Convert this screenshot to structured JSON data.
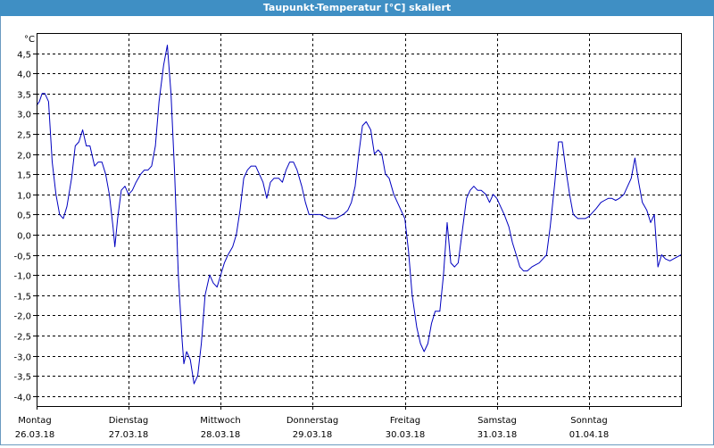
{
  "window": {
    "title": "Taupunkt-Temperatur [°C] skaliert"
  },
  "colors": {
    "title_bg": "#3f8fc4",
    "line": "#0000c0",
    "grid": "#000000",
    "background": "#ffffff"
  },
  "chart_data": {
    "type": "line",
    "title": "Taupunkt-Temperatur [°C] skaliert",
    "ylabel": "°C",
    "ylim": [
      -4.25,
      5.0
    ],
    "xlim": [
      0,
      7
    ],
    "yticks": [
      4.5,
      4.0,
      3.5,
      3.0,
      2.5,
      2.0,
      1.5,
      1.0,
      0.5,
      0.0,
      -0.5,
      -1.0,
      -1.5,
      -2.0,
      -2.5,
      -3.0,
      -3.5,
      -4.0
    ],
    "ytick_labels": [
      "4,5",
      "4,0",
      "3,5",
      "3,0",
      "2,5",
      "2,0",
      "1,5",
      "1,0",
      "0,5",
      "0,0",
      "-0,5",
      "-1,0",
      "-1,5",
      "-2,0",
      "-2,5",
      "-3,0",
      "-3,5",
      "-4,0"
    ],
    "grid": true,
    "days": [
      {
        "day": "Montag",
        "date": "26.03.18"
      },
      {
        "day": "Dienstag",
        "date": "27.03.18"
      },
      {
        "day": "Mittwoch",
        "date": "28.03.18"
      },
      {
        "day": "Donnerstag",
        "date": "29.03.18"
      },
      {
        "day": "Freitag",
        "date": "30.03.18"
      },
      {
        "day": "Samstag",
        "date": "31.03.18"
      },
      {
        "day": "Sonntag",
        "date": "01.04.18"
      }
    ],
    "series": [
      {
        "points": [
          [
            0.0,
            3.2
          ],
          [
            0.03,
            3.3
          ],
          [
            0.06,
            3.5
          ],
          [
            0.09,
            3.5
          ],
          [
            0.13,
            3.3
          ],
          [
            0.17,
            1.8
          ],
          [
            0.21,
            1.0
          ],
          [
            0.25,
            0.5
          ],
          [
            0.29,
            0.4
          ],
          [
            0.33,
            0.7
          ],
          [
            0.38,
            1.4
          ],
          [
            0.42,
            2.2
          ],
          [
            0.46,
            2.3
          ],
          [
            0.5,
            2.6
          ],
          [
            0.54,
            2.2
          ],
          [
            0.58,
            2.2
          ],
          [
            0.63,
            1.7
          ],
          [
            0.67,
            1.8
          ],
          [
            0.71,
            1.8
          ],
          [
            0.75,
            1.5
          ],
          [
            0.79,
            1.0
          ],
          [
            0.83,
            0.2
          ],
          [
            0.85,
            -0.3
          ],
          [
            0.88,
            0.4
          ],
          [
            0.92,
            1.1
          ],
          [
            0.96,
            1.2
          ],
          [
            1.0,
            1.0
          ],
          [
            1.04,
            1.1
          ],
          [
            1.08,
            1.3
          ],
          [
            1.13,
            1.5
          ],
          [
            1.17,
            1.6
          ],
          [
            1.21,
            1.6
          ],
          [
            1.25,
            1.7
          ],
          [
            1.29,
            2.2
          ],
          [
            1.33,
            3.3
          ],
          [
            1.38,
            4.2
          ],
          [
            1.42,
            4.7
          ],
          [
            1.46,
            3.5
          ],
          [
            1.5,
            1.5
          ],
          [
            1.54,
            -1.0
          ],
          [
            1.58,
            -2.6
          ],
          [
            1.6,
            -3.2
          ],
          [
            1.63,
            -2.9
          ],
          [
            1.67,
            -3.1
          ],
          [
            1.71,
            -3.7
          ],
          [
            1.75,
            -3.5
          ],
          [
            1.79,
            -2.7
          ],
          [
            1.83,
            -1.5
          ],
          [
            1.88,
            -1.0
          ],
          [
            1.92,
            -1.2
          ],
          [
            1.96,
            -1.3
          ],
          [
            2.0,
            -1.0
          ],
          [
            2.04,
            -0.7
          ],
          [
            2.08,
            -0.5
          ],
          [
            2.13,
            -0.3
          ],
          [
            2.17,
            0.0
          ],
          [
            2.21,
            0.6
          ],
          [
            2.25,
            1.4
          ],
          [
            2.29,
            1.6
          ],
          [
            2.33,
            1.7
          ],
          [
            2.38,
            1.7
          ],
          [
            2.42,
            1.5
          ],
          [
            2.46,
            1.3
          ],
          [
            2.5,
            0.9
          ],
          [
            2.54,
            1.3
          ],
          [
            2.58,
            1.4
          ],
          [
            2.63,
            1.4
          ],
          [
            2.67,
            1.3
          ],
          [
            2.71,
            1.6
          ],
          [
            2.75,
            1.8
          ],
          [
            2.79,
            1.8
          ],
          [
            2.83,
            1.6
          ],
          [
            2.88,
            1.2
          ],
          [
            2.92,
            0.8
          ],
          [
            2.96,
            0.5
          ],
          [
            3.0,
            0.5
          ],
          [
            3.04,
            0.5
          ],
          [
            3.08,
            0.5
          ],
          [
            3.13,
            0.45
          ],
          [
            3.17,
            0.4
          ],
          [
            3.21,
            0.4
          ],
          [
            3.25,
            0.4
          ],
          [
            3.29,
            0.45
          ],
          [
            3.33,
            0.5
          ],
          [
            3.38,
            0.6
          ],
          [
            3.42,
            0.8
          ],
          [
            3.46,
            1.2
          ],
          [
            3.5,
            2.0
          ],
          [
            3.54,
            2.7
          ],
          [
            3.58,
            2.8
          ],
          [
            3.63,
            2.6
          ],
          [
            3.67,
            2.0
          ],
          [
            3.71,
            2.1
          ],
          [
            3.75,
            2.0
          ],
          [
            3.79,
            1.5
          ],
          [
            3.83,
            1.4
          ],
          [
            3.88,
            1.0
          ],
          [
            3.92,
            0.8
          ],
          [
            3.96,
            0.6
          ],
          [
            4.0,
            0.4
          ],
          [
            4.04,
            -0.4
          ],
          [
            4.08,
            -1.5
          ],
          [
            4.13,
            -2.3
          ],
          [
            4.17,
            -2.7
          ],
          [
            4.21,
            -2.9
          ],
          [
            4.25,
            -2.7
          ],
          [
            4.29,
            -2.2
          ],
          [
            4.33,
            -1.9
          ],
          [
            4.38,
            -1.9
          ],
          [
            4.42,
            -1.0
          ],
          [
            4.46,
            0.3
          ],
          [
            4.5,
            -0.7
          ],
          [
            4.54,
            -0.8
          ],
          [
            4.58,
            -0.7
          ],
          [
            4.63,
            0.2
          ],
          [
            4.67,
            0.9
          ],
          [
            4.71,
            1.1
          ],
          [
            4.75,
            1.2
          ],
          [
            4.79,
            1.1
          ],
          [
            4.83,
            1.1
          ],
          [
            4.88,
            1.0
          ],
          [
            4.92,
            0.8
          ],
          [
            4.96,
            1.0
          ],
          [
            5.0,
            0.9
          ],
          [
            5.04,
            0.7
          ],
          [
            5.08,
            0.5
          ],
          [
            5.13,
            0.2
          ],
          [
            5.17,
            -0.2
          ],
          [
            5.21,
            -0.5
          ],
          [
            5.25,
            -0.8
          ],
          [
            5.29,
            -0.9
          ],
          [
            5.33,
            -0.9
          ],
          [
            5.38,
            -0.8
          ],
          [
            5.42,
            -0.75
          ],
          [
            5.46,
            -0.7
          ],
          [
            5.5,
            -0.6
          ],
          [
            5.54,
            -0.5
          ],
          [
            5.58,
            0.2
          ],
          [
            5.63,
            1.3
          ],
          [
            5.67,
            2.3
          ],
          [
            5.71,
            2.3
          ],
          [
            5.75,
            1.6
          ],
          [
            5.79,
            1.0
          ],
          [
            5.83,
            0.5
          ],
          [
            5.88,
            0.4
          ],
          [
            5.92,
            0.4
          ],
          [
            5.96,
            0.4
          ],
          [
            6.0,
            0.45
          ],
          [
            6.04,
            0.55
          ],
          [
            6.08,
            0.65
          ],
          [
            6.13,
            0.8
          ],
          [
            6.17,
            0.85
          ],
          [
            6.21,
            0.9
          ],
          [
            6.25,
            0.9
          ],
          [
            6.29,
            0.85
          ],
          [
            6.33,
            0.9
          ],
          [
            6.38,
            1.0
          ],
          [
            6.42,
            1.2
          ],
          [
            6.46,
            1.4
          ],
          [
            6.5,
            1.9
          ],
          [
            6.54,
            1.3
          ],
          [
            6.58,
            0.8
          ],
          [
            6.63,
            0.6
          ],
          [
            6.67,
            0.3
          ],
          [
            6.71,
            0.5
          ],
          [
            6.75,
            -0.8
          ],
          [
            6.79,
            -0.5
          ],
          [
            6.83,
            -0.6
          ],
          [
            6.88,
            -0.65
          ],
          [
            6.92,
            -0.6
          ],
          [
            6.96,
            -0.55
          ],
          [
            7.0,
            -0.5
          ]
        ]
      }
    ]
  }
}
